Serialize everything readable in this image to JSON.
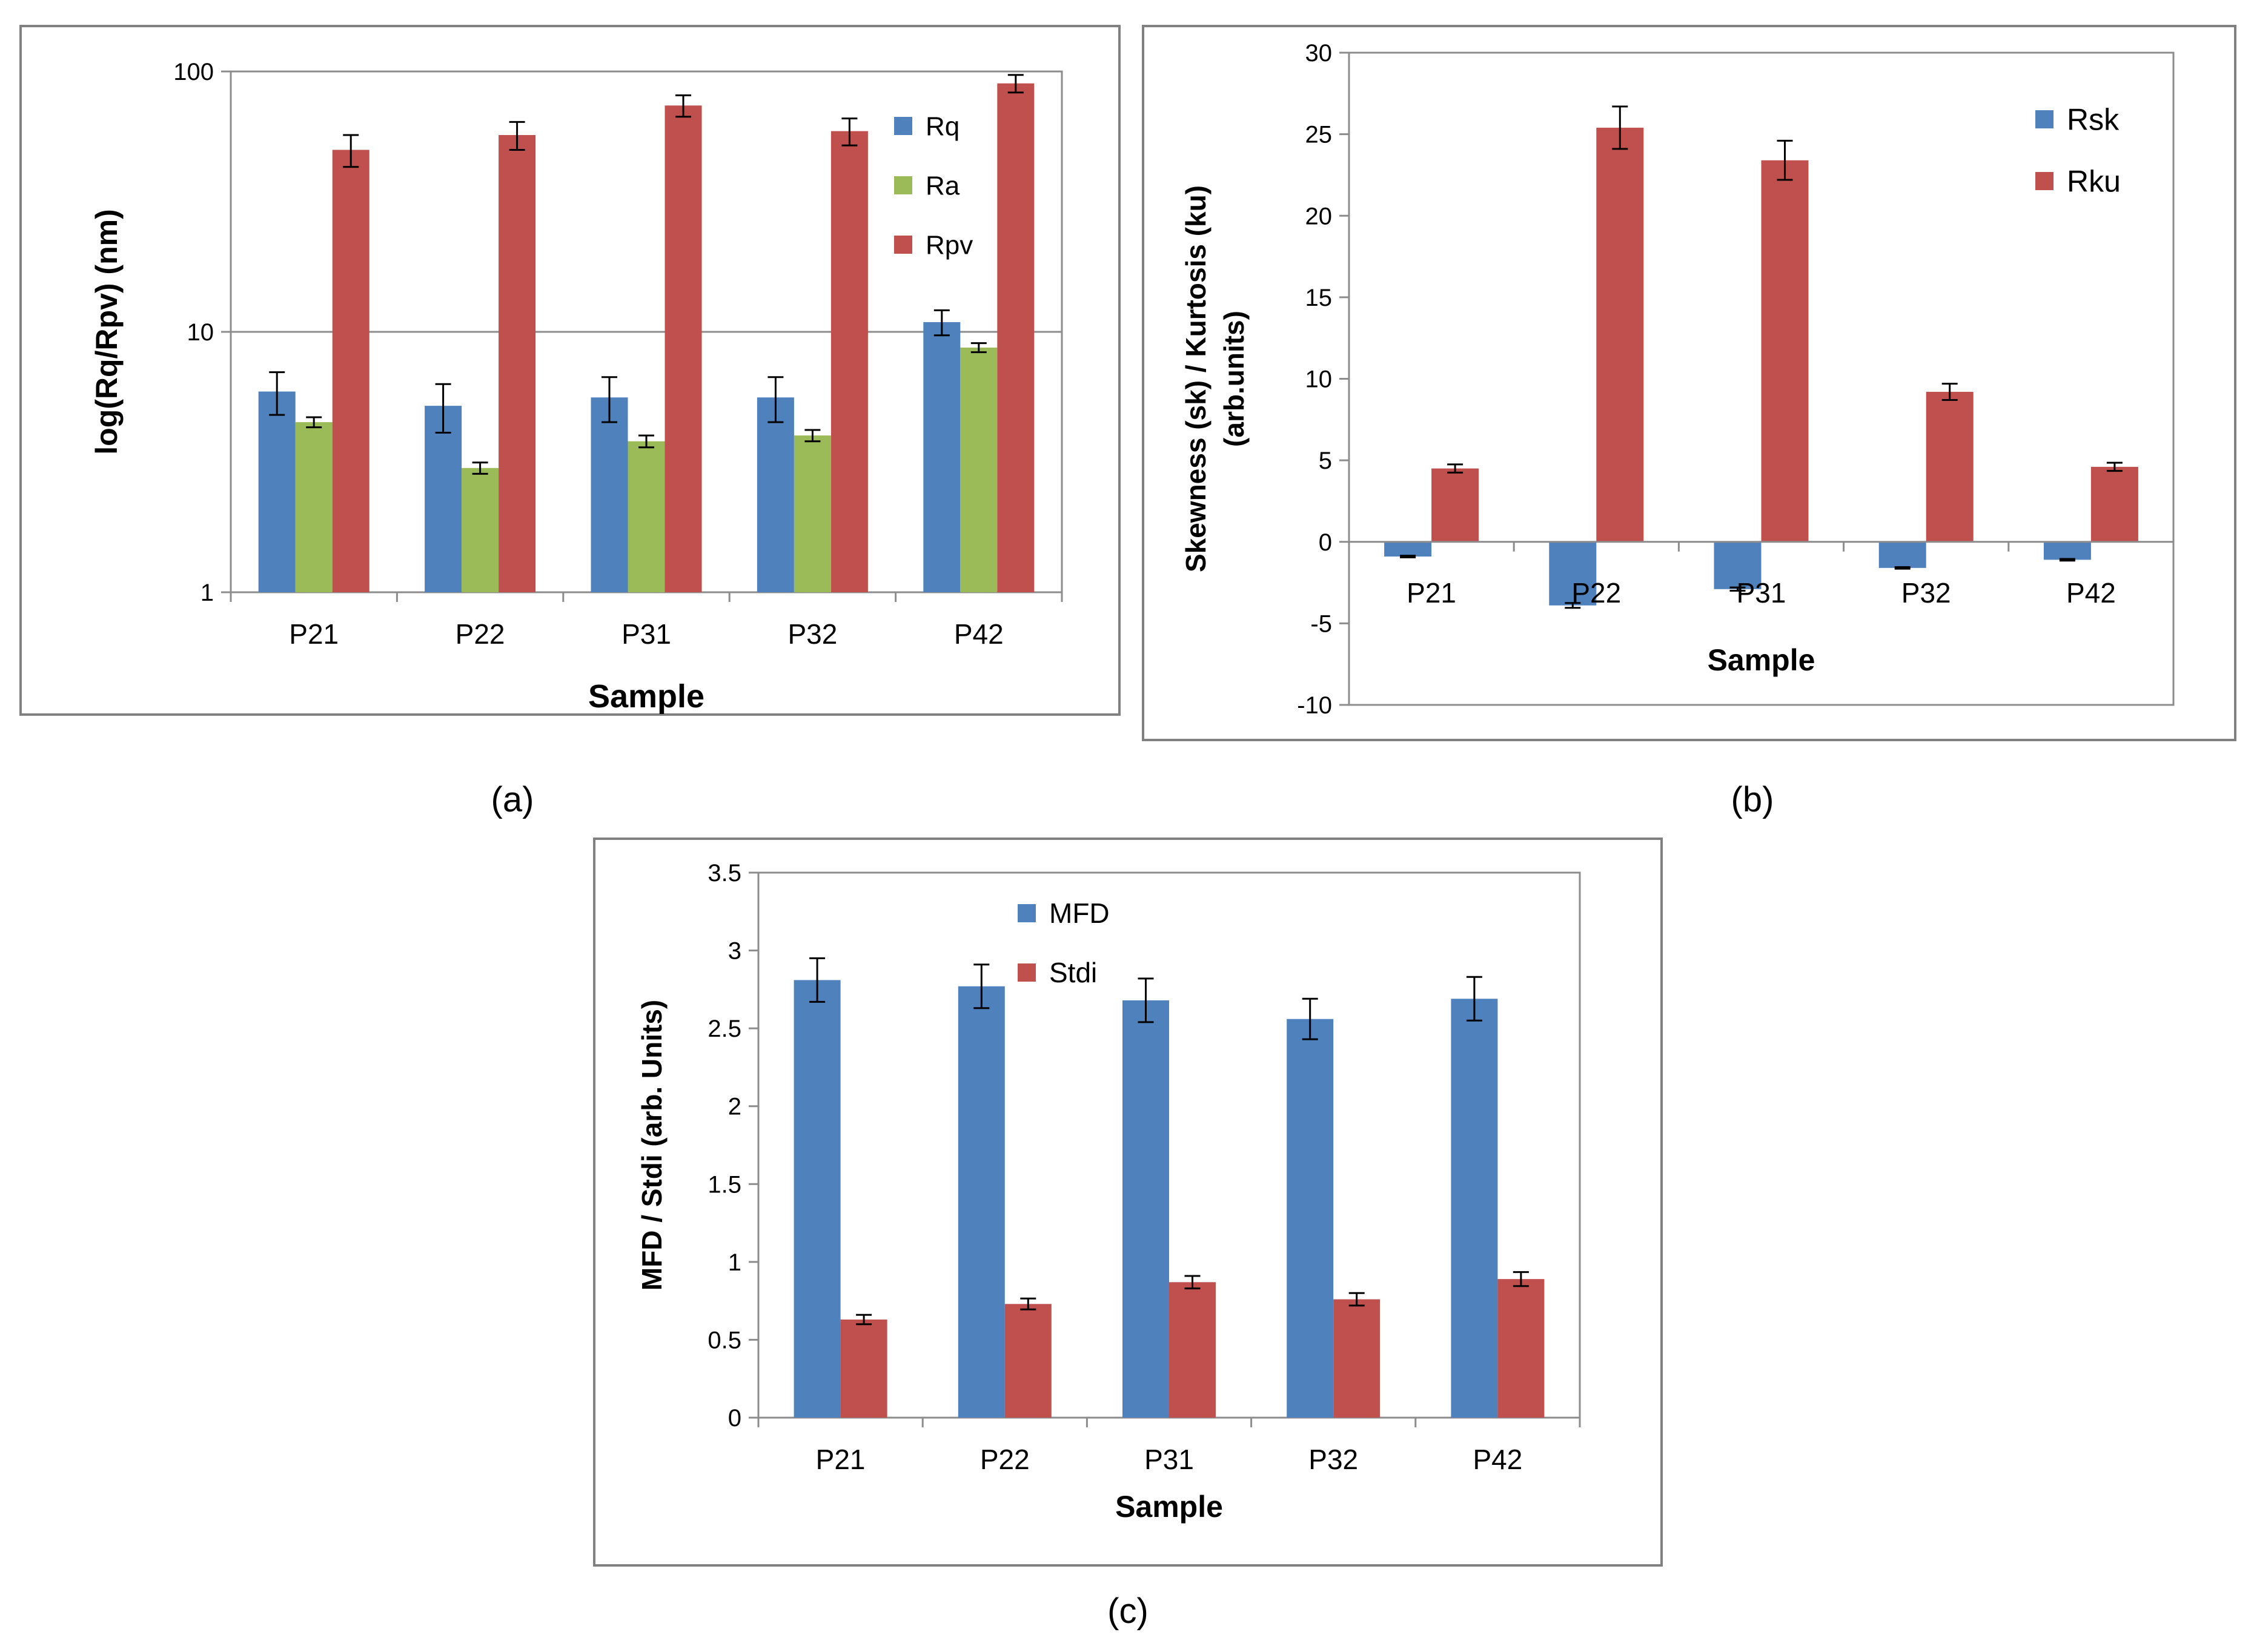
{
  "chart_data": [
    {
      "id": "a",
      "type": "bar",
      "scale": "log",
      "categories": [
        "P21",
        "P22",
        "P31",
        "P32",
        "P42"
      ],
      "series": [
        {
          "name": "Rq",
          "color": "#4F81BD",
          "values": [
            5.9,
            5.2,
            5.6,
            5.6,
            10.9
          ],
          "errors": [
            1.1,
            1.1,
            1.1,
            1.1,
            1.2
          ]
        },
        {
          "name": "Ra",
          "color": "#9BBB59",
          "values": [
            4.5,
            3.0,
            3.8,
            4.0,
            8.7
          ],
          "errors": [
            0.2,
            0.15,
            0.2,
            0.2,
            0.35
          ]
        },
        {
          "name": "Rpv",
          "color": "#C0504D",
          "values": [
            50,
            57,
            74,
            59,
            90
          ],
          "errors": [
            7,
            7,
            7,
            7,
            7
          ]
        }
      ],
      "title": "",
      "xlabel": "Sample",
      "ylabel": "log(Rq/Rpv) (nm)",
      "ylim": [
        1,
        100
      ],
      "yticks": [
        1,
        10,
        100
      ],
      "ytick_labels": [
        "1",
        "10",
        "100"
      ],
      "grid": true,
      "legend": "right",
      "panel_label": "(a)"
    },
    {
      "id": "b",
      "type": "bar",
      "categories": [
        "P21",
        "P22",
        "P31",
        "P32",
        "P42"
      ],
      "series": [
        {
          "name": "Rsk",
          "color": "#4F81BD",
          "values": [
            -0.9,
            -3.9,
            -2.9,
            -1.6,
            -1.1
          ],
          "errors": [
            0.05,
            0.15,
            0.1,
            0.05,
            0.05
          ]
        },
        {
          "name": "Rku",
          "color": "#C0504D",
          "values": [
            4.5,
            25.4,
            23.4,
            9.2,
            4.6
          ],
          "errors": [
            0.25,
            1.3,
            1.2,
            0.5,
            0.25
          ]
        }
      ],
      "title": "",
      "xlabel": "Sample",
      "ylabel_lines": [
        "Skewness (sk) / Kurtosis (ku)",
        "(arb.units)"
      ],
      "ylim": [
        -10,
        30
      ],
      "yticks": [
        -10,
        -5,
        0,
        5,
        10,
        15,
        20,
        25,
        30
      ],
      "ytick_labels": [
        "-10",
        "-5",
        "0",
        "5",
        "10",
        "15",
        "20",
        "25",
        "30"
      ],
      "grid": false,
      "legend": "top-right",
      "panel_label": "(b)"
    },
    {
      "id": "c",
      "type": "bar",
      "categories": [
        "P21",
        "P22",
        "P31",
        "P32",
        "P42"
      ],
      "series": [
        {
          "name": "MFD",
          "color": "#4F81BD",
          "values": [
            2.81,
            2.77,
            2.68,
            2.56,
            2.69
          ],
          "errors": [
            0.14,
            0.14,
            0.14,
            0.13,
            0.14
          ]
        },
        {
          "name": "Stdi",
          "color": "#C0504D",
          "values": [
            0.63,
            0.73,
            0.87,
            0.76,
            0.89
          ],
          "errors": [
            0.03,
            0.035,
            0.04,
            0.04,
            0.045
          ]
        }
      ],
      "title": "",
      "xlabel": "Sample",
      "ylabel": "MFD / Stdi (arb. Units)",
      "ylim": [
        0,
        3.5
      ],
      "yticks": [
        0,
        0.5,
        1,
        1.5,
        2,
        2.5,
        3,
        3.5
      ],
      "ytick_labels": [
        "0",
        "0.5",
        "1",
        "1.5",
        "2",
        "2.5",
        "3",
        "3.5"
      ],
      "grid": false,
      "legend": "top",
      "panel_label": "(c)"
    }
  ]
}
